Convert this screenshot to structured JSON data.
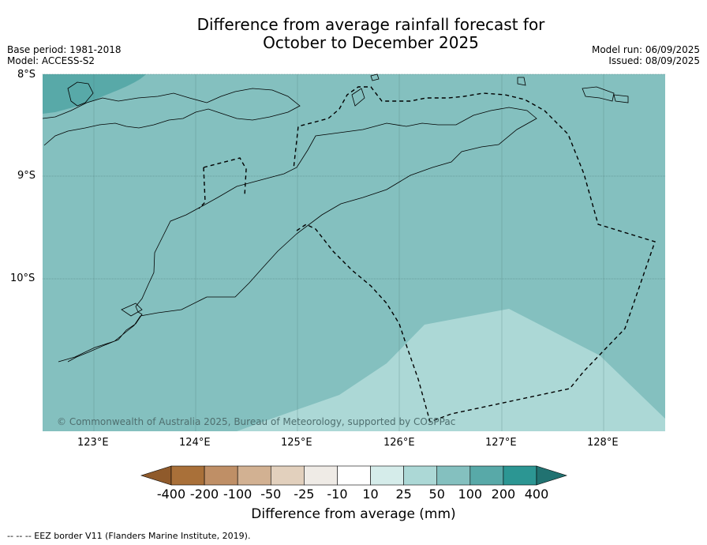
{
  "title_line1": "Difference from average rainfall forecast for",
  "title_line2": "October to December 2025",
  "meta_left": [
    "Base period: 1981-2018",
    "Model: ACCESS-S2"
  ],
  "meta_right": [
    "Model run: 06/09/2025",
    "Issued: 08/09/2025"
  ],
  "lat_labels": [
    "8°S",
    "9°S",
    "10°S"
  ],
  "lon_labels": [
    "123°E",
    "124°E",
    "125°E",
    "126°E",
    "127°E",
    "128°E"
  ],
  "copyright": "© Commonwealth of Australia 2025, Bureau of Meteorology, supported by COSPPac",
  "colorbar": {
    "ticks": [
      "-400",
      "-200",
      "-100",
      "-50",
      "-25",
      "-10",
      "10",
      "25",
      "50",
      "100",
      "200",
      "400"
    ],
    "colors": [
      "#a97039",
      "#bf8f66",
      "#d2b192",
      "#e2d0bd",
      "#efebe6",
      "#ffffff",
      "#d5ecea",
      "#acd8d6",
      "#84c0bf",
      "#58a9a8",
      "#2c9693"
    ],
    "extend_low_color": "#8f5a2b",
    "extend_high_color": "#217271",
    "label": "Difference from average (mm)"
  },
  "footnote": "--  --  -- EEZ border V11 (Flanders Marine Institute, 2019).",
  "map": {
    "dominant_class": "50 to 100",
    "dominant_color": "#84c0bf",
    "southeast_class": "25 to 50",
    "southeast_color": "#acd8d6",
    "northwest_class": "100 to 200",
    "northwest_color": "#58a9a8"
  }
}
